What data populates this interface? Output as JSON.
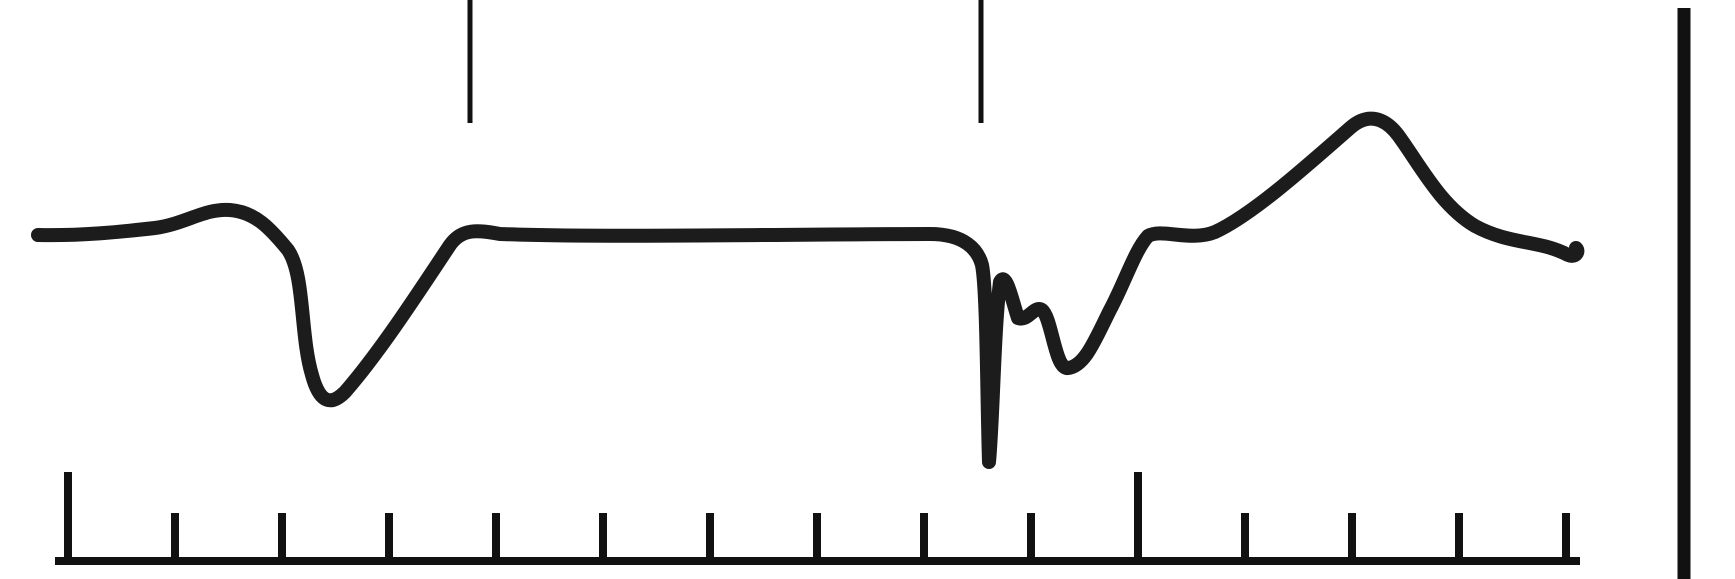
{
  "figure": {
    "type": "waveform-trace",
    "colors": {
      "background": "#ffffff",
      "trace": "#1c1c1c",
      "marks": "#111111"
    },
    "time_axis": {
      "minor_tick_count": 15,
      "major_tick_indices": [
        0,
        10
      ]
    },
    "event_markers_count": 2,
    "scale_bar": "vertical"
  }
}
